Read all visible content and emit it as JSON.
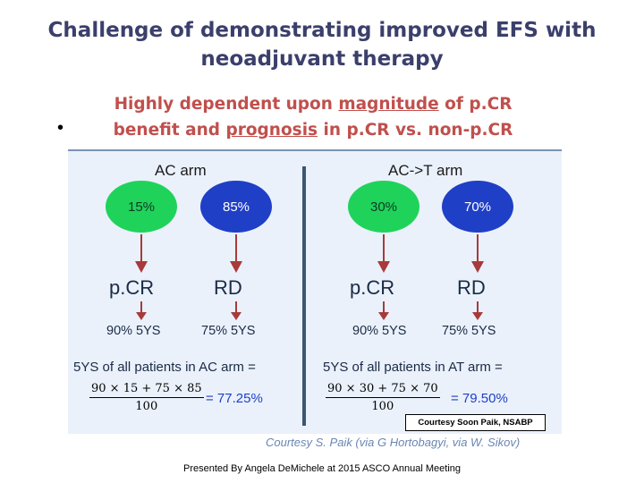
{
  "title": {
    "line1": "Challenge of demonstrating improved EFS with",
    "line2": "neoadjuvant therapy"
  },
  "bullet": "•",
  "subtitle": {
    "line1_a": "Highly dependent upon ",
    "line1_u": "magnitude",
    "line1_b": " of p.CR",
    "line2_a": "benefit and ",
    "line2_u": "prognosis",
    "line2_b": " in p.CR vs. non-p.CR"
  },
  "figure": {
    "arms": [
      {
        "label": "AC arm",
        "pcr_pct": "15%",
        "rd_pct": "85%",
        "pcr_label": "p.CR",
        "rd_label": "RD",
        "pcr_ys": "90% 5YS",
        "rd_ys": "75% 5YS",
        "calc_label": "5YS of all patients in AC arm =",
        "numerator": "90 × 15 + 75 × 85",
        "denominator": "100",
        "result": "= 77.25%"
      },
      {
        "label": "AC->T arm",
        "pcr_pct": "30%",
        "rd_pct": "70%",
        "pcr_label": "p.CR",
        "rd_label": "RD",
        "pcr_ys": "90% 5YS",
        "rd_ys": "75% 5YS",
        "calc_label": "5YS of all patients in AT arm =",
        "numerator": "90 × 30 + 75 × 70",
        "denominator": "100",
        "result": "= 79.50%"
      }
    ],
    "courtesy_box": "Courtesy Soon Paik, NSABP"
  },
  "courtesy_line": "Courtesy S. Paik (via G Hortobagyi, via W. Sikov)",
  "footer": "Presented By Angela DeMichele at 2015 ASCO Annual Meeting",
  "colors": {
    "title": "#3b3f6b",
    "subtitle": "#c0504d",
    "pcr_circle": "#1fd35a",
    "rd_circle": "#1f3fc6",
    "arrow": "#a83a3a",
    "figure_bg": "#eaf1fb"
  }
}
